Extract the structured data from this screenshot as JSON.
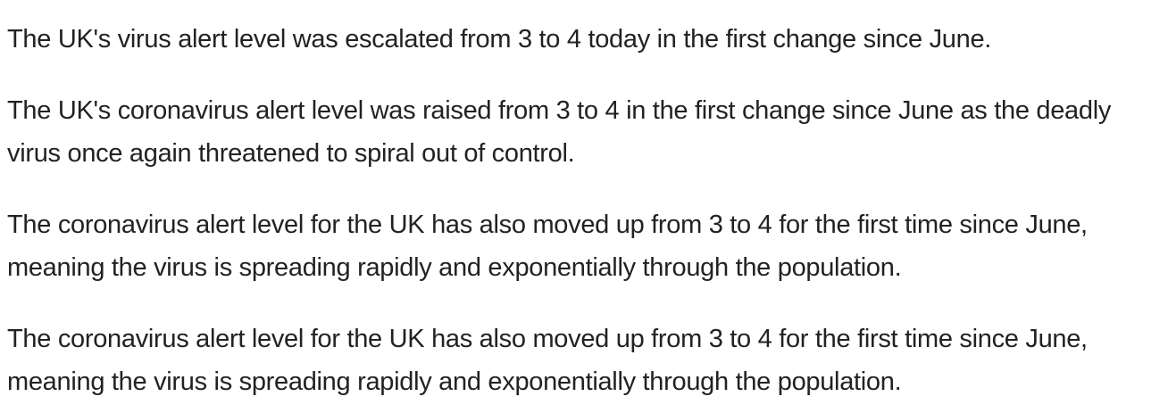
{
  "article": {
    "paragraphs": [
      "The UK's virus alert level was escalated from 3 to 4 today in the first change since June.",
      "The UK's coronavirus alert level was raised from 3 to 4 in the first change since June as the deadly virus once again threatened to spiral out of control.",
      "The coronavirus alert level for the UK has also moved up from 3 to 4 for the first time since June, meaning the virus is spreading rapidly and exponentially through the population.",
      "The coronavirus alert level for the UK has also moved up from 3 to 4 for the first time since June, meaning the virus is spreading rapidly and exponentially through the population."
    ]
  }
}
